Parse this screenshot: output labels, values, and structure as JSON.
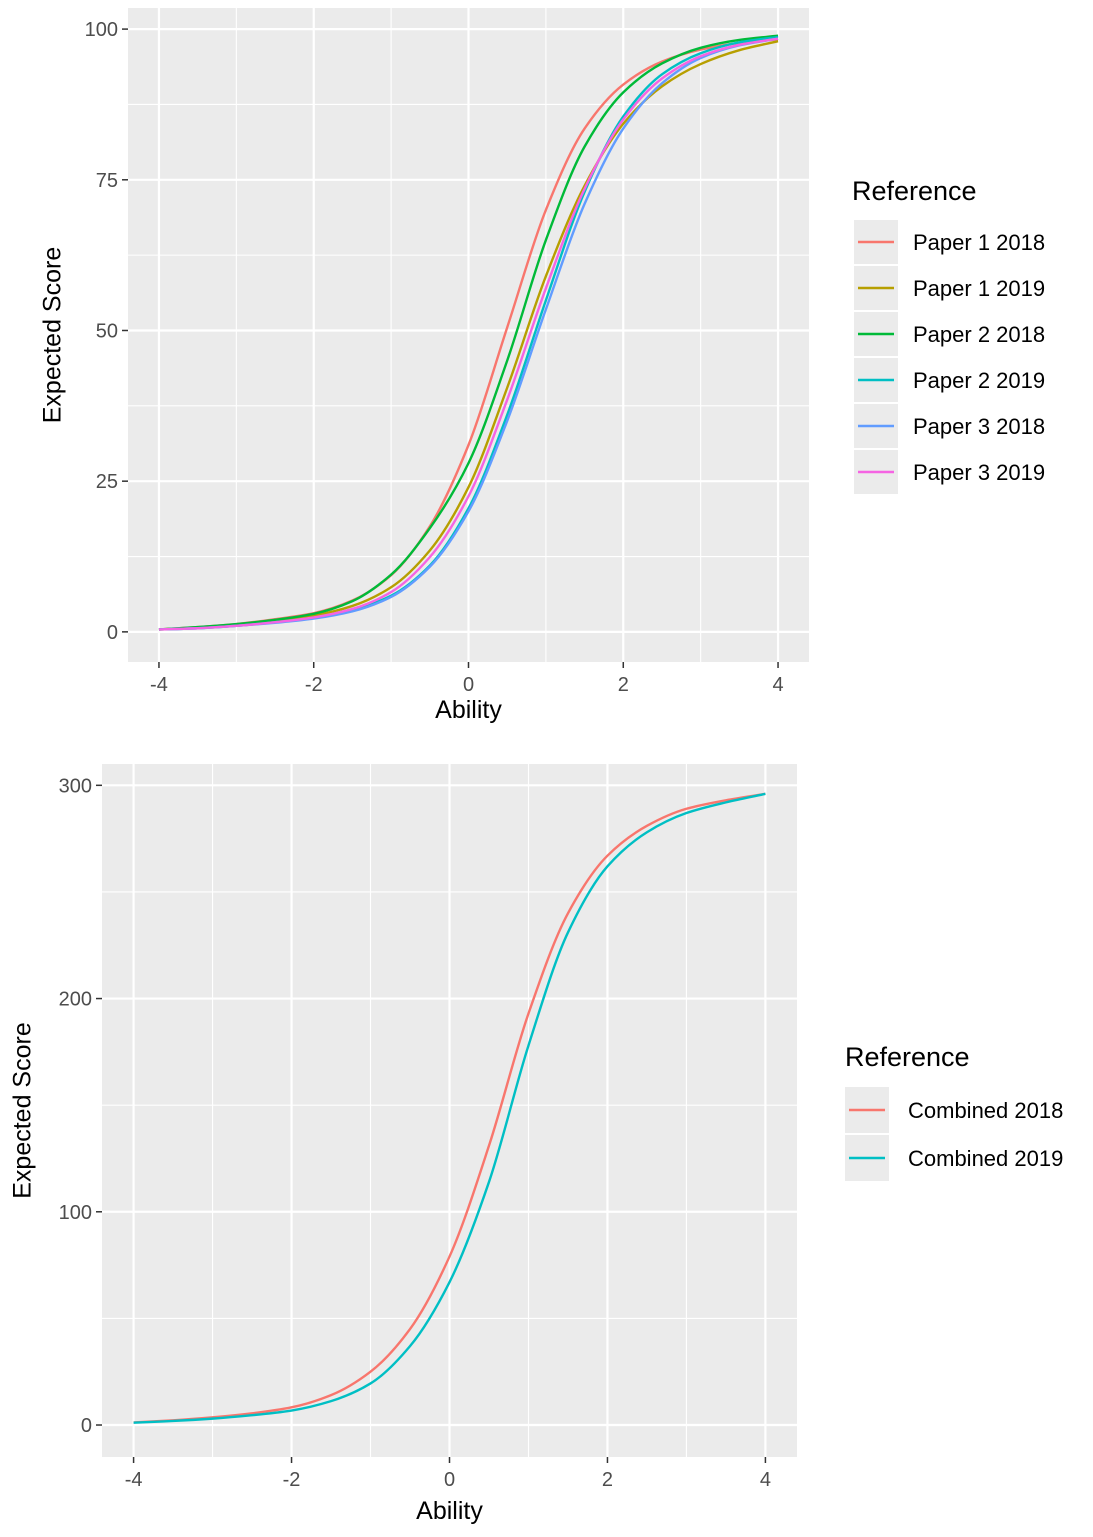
{
  "chart_data": [
    {
      "type": "line",
      "title": "",
      "xlabel": "Ability",
      "ylabel": "Expected Score",
      "xlim": [
        -4.4,
        4.4
      ],
      "ylim": [
        -5,
        103.5
      ],
      "xticks": [
        -4,
        -2,
        0,
        2,
        4
      ],
      "xtick_labels": [
        "-4",
        "-2",
        "0",
        "2",
        "4"
      ],
      "yticks": [
        0,
        25,
        50,
        75,
        100
      ],
      "ytick_labels": [
        "0",
        "25",
        "50",
        "75",
        "100"
      ],
      "grid": true,
      "legend": {
        "title": "Reference",
        "position": "right"
      },
      "x": [
        -4,
        -3.5,
        -3,
        -2.5,
        -2,
        -1.5,
        -1,
        -0.5,
        0,
        0.5,
        1,
        1.5,
        2,
        2.5,
        3,
        3.5,
        4
      ],
      "series": [
        {
          "name": "Paper 1 2018",
          "color": "#F8766D",
          "values": [
            0.4,
            0.8,
            1.3,
            2.1,
            3.1,
            5.2,
            9.4,
            17.5,
            31.0,
            50.5,
            70.0,
            83.5,
            90.8,
            94.6,
            96.6,
            97.7,
            98.3
          ]
        },
        {
          "name": "Paper 1 2019",
          "color": "#B79F00",
          "values": [
            0.4,
            0.7,
            1.2,
            1.8,
            2.7,
            4.3,
            7.4,
            13.5,
            24.0,
            40.5,
            59.0,
            74.0,
            84.3,
            90.5,
            94.2,
            96.5,
            98.0
          ]
        },
        {
          "name": "Paper 2 2018",
          "color": "#00BA38",
          "values": [
            0.4,
            0.8,
            1.3,
            2.0,
            3.0,
            5.1,
            9.5,
            17.2,
            28.0,
            45.0,
            65.0,
            80.5,
            89.5,
            94.3,
            96.9,
            98.2,
            98.9
          ]
        },
        {
          "name": "Paper 2 2019",
          "color": "#00BFC4",
          "values": [
            0.4,
            0.6,
            1.0,
            1.6,
            2.3,
            3.6,
            6.0,
            11.0,
            20.5,
            36.0,
            55.0,
            73.0,
            85.5,
            92.5,
            96.0,
            97.8,
            98.7
          ]
        },
        {
          "name": "Paper 3 2018",
          "color": "#619CFF",
          "values": [
            0.4,
            0.6,
            1.0,
            1.5,
            2.2,
            3.4,
            5.8,
            10.8,
            20.0,
            35.0,
            53.5,
            71.0,
            83.5,
            91.0,
            95.2,
            97.3,
            98.4
          ]
        },
        {
          "name": "Paper 3 2019",
          "color": "#F564E3",
          "values": [
            0.4,
            0.6,
            1.0,
            1.6,
            2.4,
            3.8,
            6.6,
            12.4,
            22.5,
            38.5,
            57.0,
            73.5,
            85.0,
            91.8,
            95.5,
            97.4,
            98.4
          ]
        }
      ]
    },
    {
      "type": "line",
      "title": "",
      "xlabel": "Ability",
      "ylabel": "Expected Score",
      "xlim": [
        -4.4,
        4.4
      ],
      "ylim": [
        -15,
        310
      ],
      "xticks": [
        -4,
        -2,
        0,
        2,
        4
      ],
      "xtick_labels": [
        "-4",
        "-2",
        "0",
        "2",
        "4"
      ],
      "yticks": [
        0,
        100,
        200,
        300
      ],
      "ytick_labels": [
        "0",
        "100",
        "200",
        "300"
      ],
      "grid": true,
      "legend": {
        "title": "Reference",
        "position": "right"
      },
      "x": [
        -4,
        -3.5,
        -3,
        -2.5,
        -2,
        -1.5,
        -1,
        -0.5,
        0,
        0.5,
        1,
        1.5,
        2,
        2.5,
        3,
        3.5,
        4
      ],
      "series": [
        {
          "name": "Combined 2018",
          "color": "#F8766D",
          "values": [
            1.2,
            2.2,
            3.6,
            5.5,
            8.3,
            14.0,
            25.0,
            45.0,
            79.0,
            131.0,
            193.0,
            240.0,
            267.0,
            281.0,
            289.0,
            293.0,
            296.0
          ]
        },
        {
          "name": "Combined 2019",
          "color": "#00BFC4",
          "values": [
            1.1,
            1.9,
            3.0,
            4.6,
            6.8,
            11.2,
            19.5,
            37.0,
            67.0,
            114.0,
            178.0,
            231.0,
            262.0,
            278.0,
            287.0,
            292.0,
            296.0
          ]
        }
      ]
    }
  ]
}
